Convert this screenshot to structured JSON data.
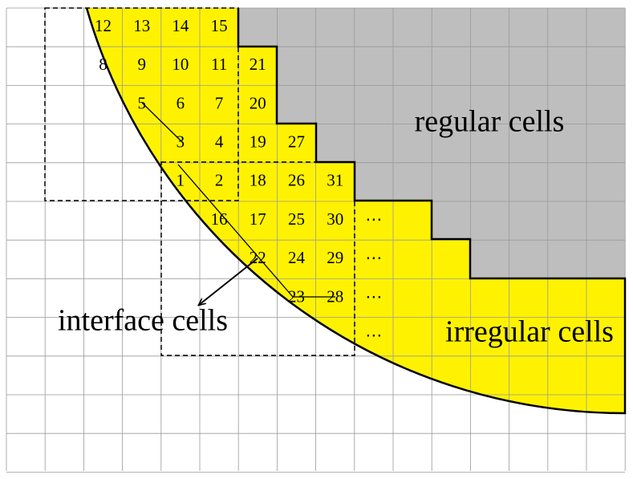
{
  "cells": [
    "12",
    "13",
    "14",
    "15",
    "8",
    "9",
    "10",
    "11",
    "21",
    "5",
    "6",
    "7",
    "20",
    "3",
    "4",
    "19",
    "27",
    "1",
    "2",
    "18",
    "26",
    "31",
    "16",
    "17",
    "25",
    "30",
    "⋯",
    "22",
    "24",
    "29",
    "⋯",
    "23",
    "28",
    "⋯",
    "⋯"
  ],
  "labels": {
    "regular": "regular cells",
    "interface": "interface cells",
    "irregular": "irregular cells"
  }
}
